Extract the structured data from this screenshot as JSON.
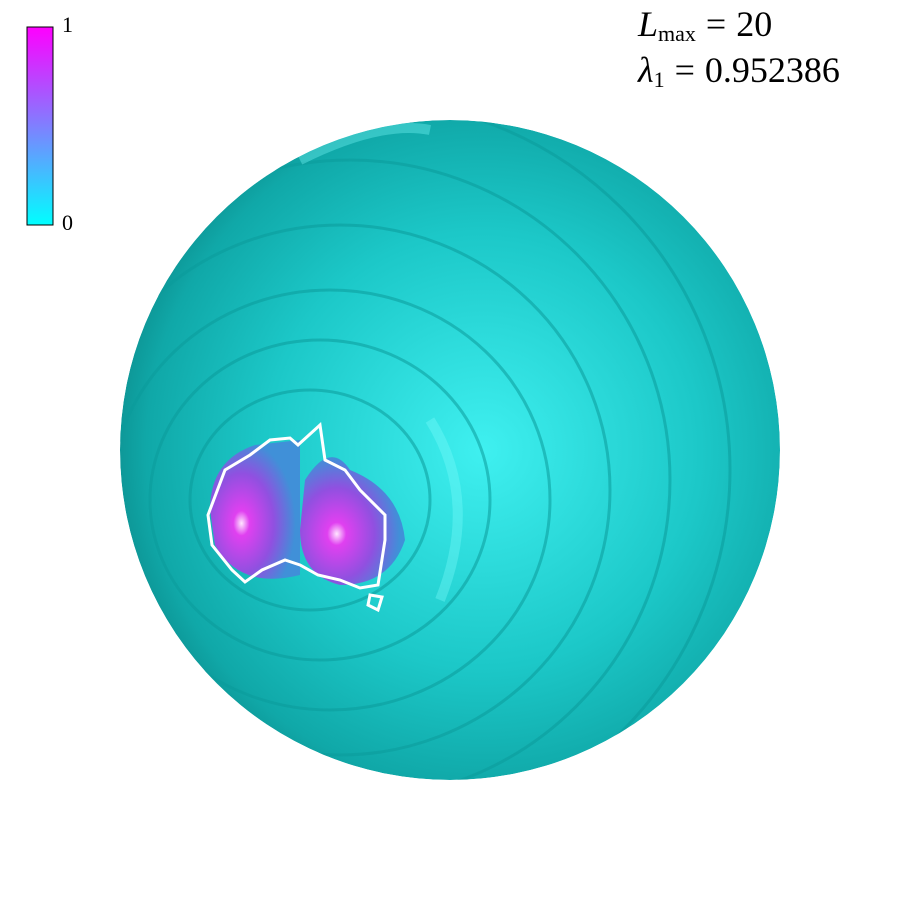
{
  "chart_data": {
    "type": "sphere",
    "colorbar": {
      "clim": [
        0,
        1
      ],
      "ticks": [
        0,
        1
      ],
      "colors": [
        "#00ffff",
        "#ff00ff"
      ]
    },
    "annotations": [
      {
        "symbol": "L",
        "subscript": "max",
        "relation": "=",
        "value": "20"
      },
      {
        "symbol": "λ",
        "subscript": "1",
        "relation": "=",
        "value": "0.952386"
      }
    ]
  }
}
